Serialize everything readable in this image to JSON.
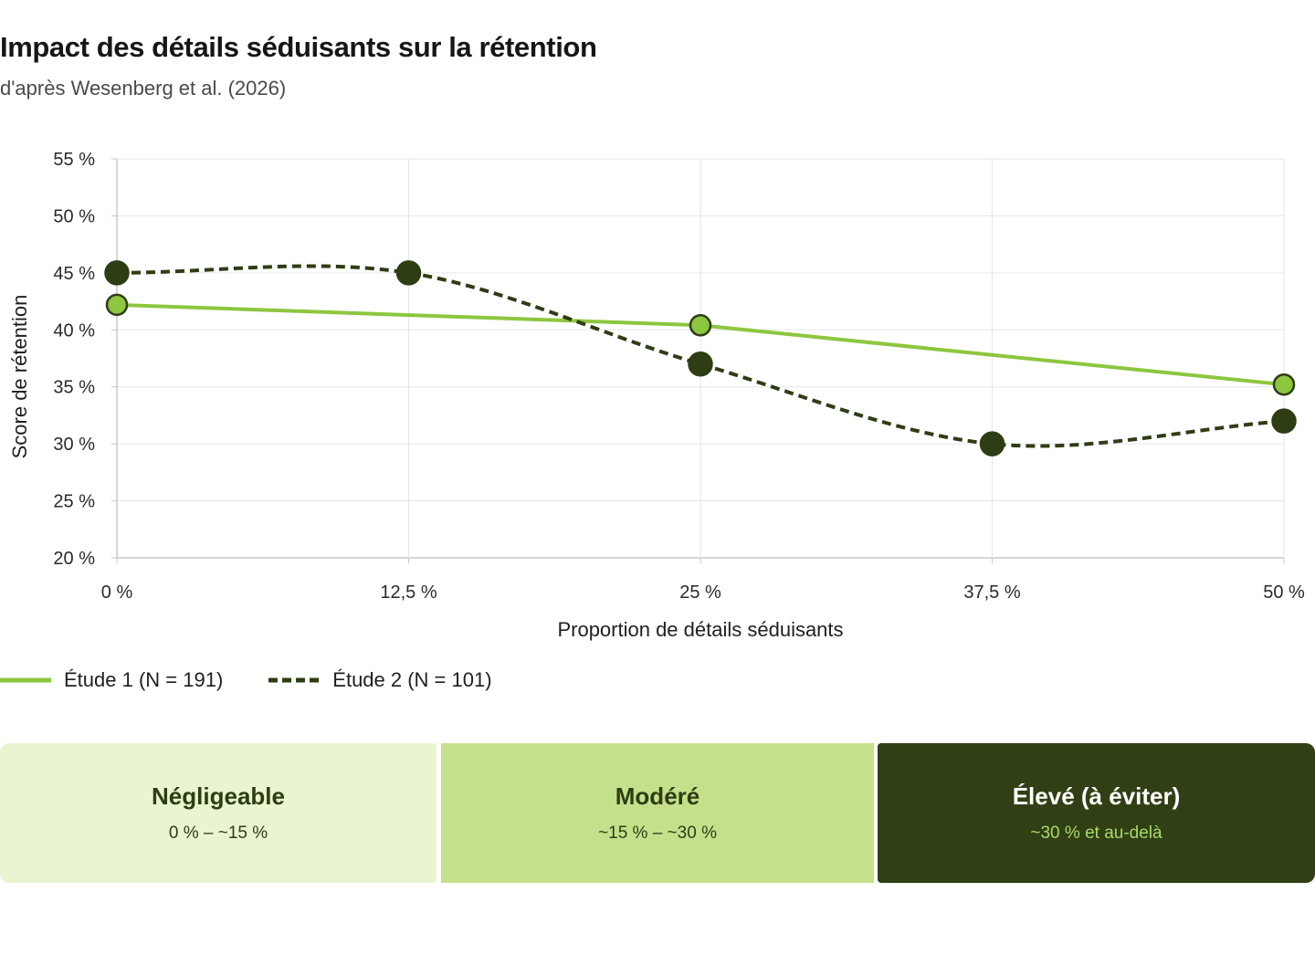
{
  "header": {
    "title": "Impact des détails séduisants sur la rétention",
    "subtitle": "d'après Wesenberg et al. (2026)"
  },
  "colors": {
    "study1": "#8dc63f",
    "study2": "#2e3d14",
    "grid": "#e6e6e6",
    "axis": "#c8c8c8"
  },
  "chart_data": {
    "type": "line",
    "xlabel": "Proportion de détails séduisants",
    "ylabel": "Score de rétention",
    "x": [
      0,
      12.5,
      25,
      37.5,
      50
    ],
    "xlim": [
      0,
      50
    ],
    "ylim": [
      20,
      55
    ],
    "x_ticks": [
      0,
      12.5,
      25,
      37.5,
      50
    ],
    "x_tick_labels": [
      "0 %",
      "12,5 %",
      "25 %",
      "37,5 %",
      "50 %"
    ],
    "y_ticks": [
      20,
      25,
      30,
      35,
      40,
      45,
      50,
      55
    ],
    "y_tick_labels": [
      "20 %",
      "25 %",
      "30 %",
      "35 %",
      "40 %",
      "45 %",
      "50 %",
      "55 %"
    ],
    "grid": true,
    "legend_position": "bottom-left",
    "series": [
      {
        "name": "Étude 1 (N = 191)",
        "style": "solid",
        "curve": "linear",
        "points": [
          {
            "x": 0,
            "y": 42.2
          },
          {
            "x": 25,
            "y": 40.4
          },
          {
            "x": 50,
            "y": 35.2
          }
        ]
      },
      {
        "name": "Étude 2 (N = 101)",
        "style": "dashed",
        "curve": "smooth",
        "points": [
          {
            "x": 0,
            "y": 45
          },
          {
            "x": 12.5,
            "y": 45
          },
          {
            "x": 25,
            "y": 37
          },
          {
            "x": 37.5,
            "y": 30
          },
          {
            "x": 50,
            "y": 32
          }
        ]
      }
    ]
  },
  "bands": [
    {
      "title": "Négligeable",
      "range": "0 % – ~15 %",
      "bg": "#e8f5d0",
      "fg": "#2e3d14",
      "range_fg": "#2e3d14"
    },
    {
      "title": "Modéré",
      "range": "~15 % – ~30 %",
      "bg": "#c5e08a",
      "fg": "#2e3d14",
      "range_fg": "#2e3d14"
    },
    {
      "title": "Élevé (à éviter)",
      "range": "~30 % et au-delà",
      "bg": "#314014",
      "fg": "#ffffff",
      "range_fg": "#a7d96a"
    }
  ]
}
